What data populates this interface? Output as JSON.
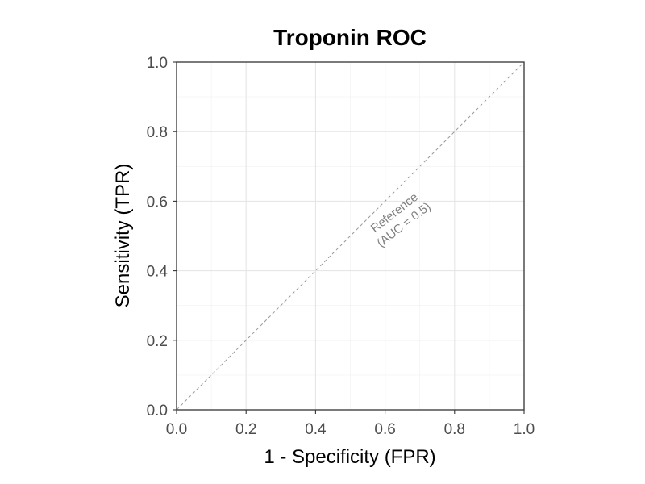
{
  "chart_data": {
    "type": "line",
    "title": "Troponin ROC",
    "xlabel": "1 - Specificity (FPR)",
    "ylabel": "Sensitivity (TPR)",
    "xlim": [
      0,
      1
    ],
    "ylim": [
      0,
      1
    ],
    "x_ticks": [
      0.0,
      0.2,
      0.4,
      0.6,
      0.8,
      1.0
    ],
    "y_ticks": [
      0.0,
      0.2,
      0.4,
      0.6,
      0.8,
      1.0
    ],
    "x_tick_labels": [
      "0.0",
      "0.2",
      "0.4",
      "0.6",
      "0.8",
      "1.0"
    ],
    "y_tick_labels": [
      "0.0",
      "0.2",
      "0.4",
      "0.6",
      "0.8",
      "1.0"
    ],
    "grid": true,
    "series": [
      {
        "line_style": "dashed",
        "color": "#999999",
        "x": [
          0,
          1
        ],
        "y": [
          0,
          1
        ]
      }
    ],
    "annotations": [
      {
        "lines": [
          "Reference",
          "(AUC = 0.5)"
        ],
        "x": 0.64,
        "y": 0.55,
        "angle_deg": -38,
        "color": "#808080"
      }
    ]
  }
}
